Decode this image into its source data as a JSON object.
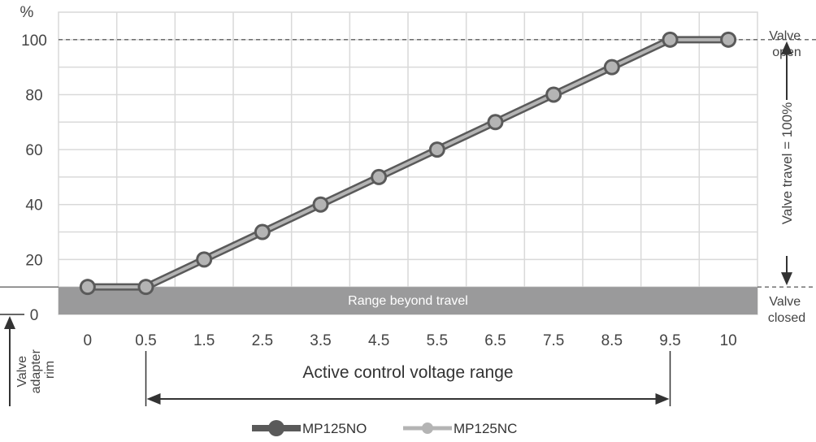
{
  "chart_data": {
    "type": "line",
    "categories": [
      "0",
      "0.5",
      "1.5",
      "2.5",
      "3.5",
      "4.5",
      "5.5",
      "6.5",
      "7.5",
      "8.5",
      "9.5",
      "10"
    ],
    "series": [
      {
        "name": "MP125NO",
        "values": [
          10,
          10,
          20,
          30,
          40,
          50,
          60,
          70,
          80,
          90,
          100,
          100
        ],
        "color": "#5a5a5a"
      },
      {
        "name": "MP125NC",
        "values": [
          10,
          10,
          20,
          30,
          40,
          50,
          60,
          70,
          80,
          90,
          100,
          100
        ],
        "color": "#b4b4b4"
      }
    ],
    "y_unit": "%",
    "y_ticks": [
      "0",
      "20",
      "40",
      "60",
      "80",
      "100"
    ],
    "ylim": [
      0,
      110
    ],
    "grid": true,
    "legend": "bottom-center",
    "annotations": {
      "valve_open": "Valve open",
      "valve_closed": "Valve closed",
      "valve_travel": "Valve travel = 100%",
      "range_beyond_travel": "Range beyond travel",
      "valve_adapter_rim": "Valve adapter rim",
      "active_range": "Active control voltage range"
    }
  }
}
